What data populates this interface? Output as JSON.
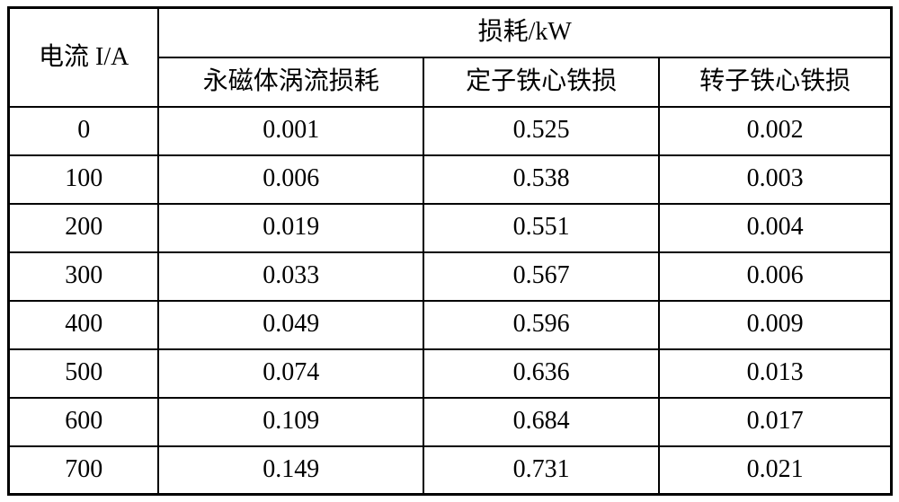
{
  "table": {
    "current_header": "电流 I/A",
    "group_header": "损耗/kW",
    "sub_headers": [
      "永磁体涡流损耗",
      "定子铁心铁损",
      "转子铁心铁损"
    ],
    "rows": [
      [
        "0",
        "0.001",
        "0.525",
        "0.002"
      ],
      [
        "100",
        "0.006",
        "0.538",
        "0.003"
      ],
      [
        "200",
        "0.019",
        "0.551",
        "0.004"
      ],
      [
        "300",
        "0.033",
        "0.567",
        "0.006"
      ],
      [
        "400",
        "0.049",
        "0.596",
        "0.009"
      ],
      [
        "500",
        "0.074",
        "0.636",
        "0.013"
      ],
      [
        "600",
        "0.109",
        "0.684",
        "0.017"
      ],
      [
        "700",
        "0.149",
        "0.731",
        "0.021"
      ]
    ]
  },
  "colors": {
    "border": "#000000",
    "text": "#000000",
    "background": "#ffffff"
  },
  "chart_data": {
    "type": "table",
    "title": "损耗/kW",
    "columns": [
      "电流 I/A",
      "永磁体涡流损耗",
      "定子铁心铁损",
      "转子铁心铁损"
    ],
    "column_group": {
      "label": "损耗/kW",
      "covers": [
        "永磁体涡流损耗",
        "定子铁心铁损",
        "转子铁心铁损"
      ]
    },
    "x": [
      0,
      100,
      200,
      300,
      400,
      500,
      600,
      700
    ],
    "series": [
      {
        "name": "永磁体涡流损耗",
        "values": [
          0.001,
          0.006,
          0.019,
          0.033,
          0.049,
          0.074,
          0.109,
          0.149
        ]
      },
      {
        "name": "定子铁心铁损",
        "values": [
          0.525,
          0.538,
          0.551,
          0.567,
          0.596,
          0.636,
          0.684,
          0.731
        ]
      },
      {
        "name": "转子铁心铁损",
        "values": [
          0.002,
          0.003,
          0.004,
          0.006,
          0.009,
          0.013,
          0.017,
          0.021
        ]
      }
    ],
    "xlabel": "电流 I/A",
    "ylabel": "损耗/kW"
  }
}
